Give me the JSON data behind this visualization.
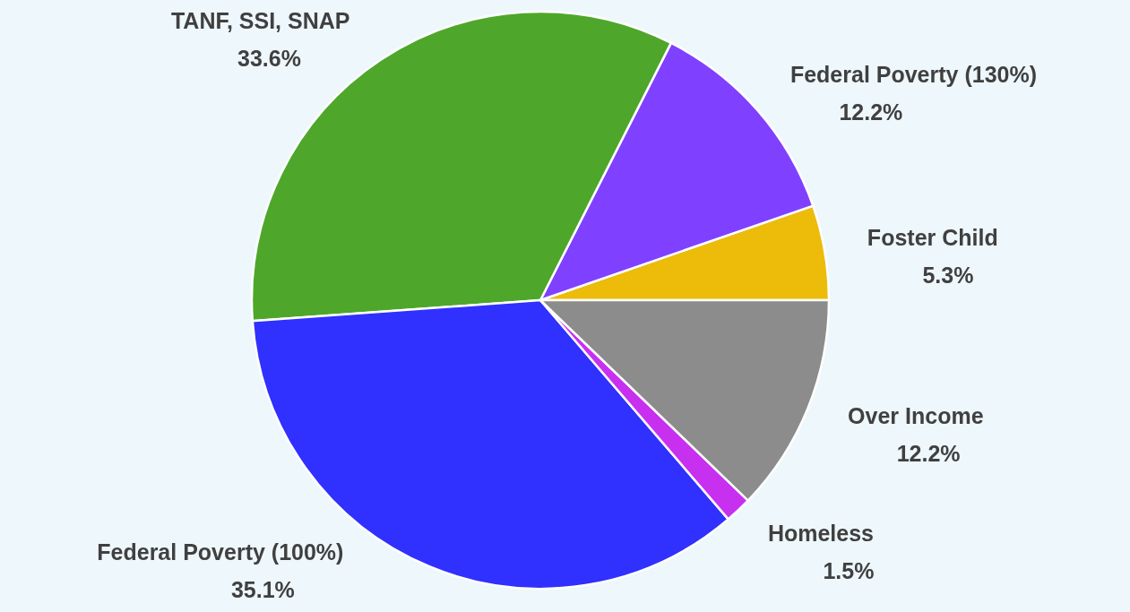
{
  "chart_data": {
    "type": "pie",
    "categories": [
      "Foster Child",
      "Federal Poverty (130%)",
      "TANF, SSI, SNAP",
      "Federal Poverty (100%)",
      "Homeless",
      "Over Income"
    ],
    "values": [
      5.3,
      12.2,
      33.6,
      35.1,
      1.5,
      12.2
    ],
    "value_labels": [
      "5.3%",
      "12.2%",
      "33.6%",
      "35.1%",
      "1.5%",
      "12.2%"
    ],
    "colors": [
      "#edbb0a",
      "#8040ff",
      "#4ea72a",
      "#3030ff",
      "#c830f0",
      "#8c8c8c"
    ]
  }
}
